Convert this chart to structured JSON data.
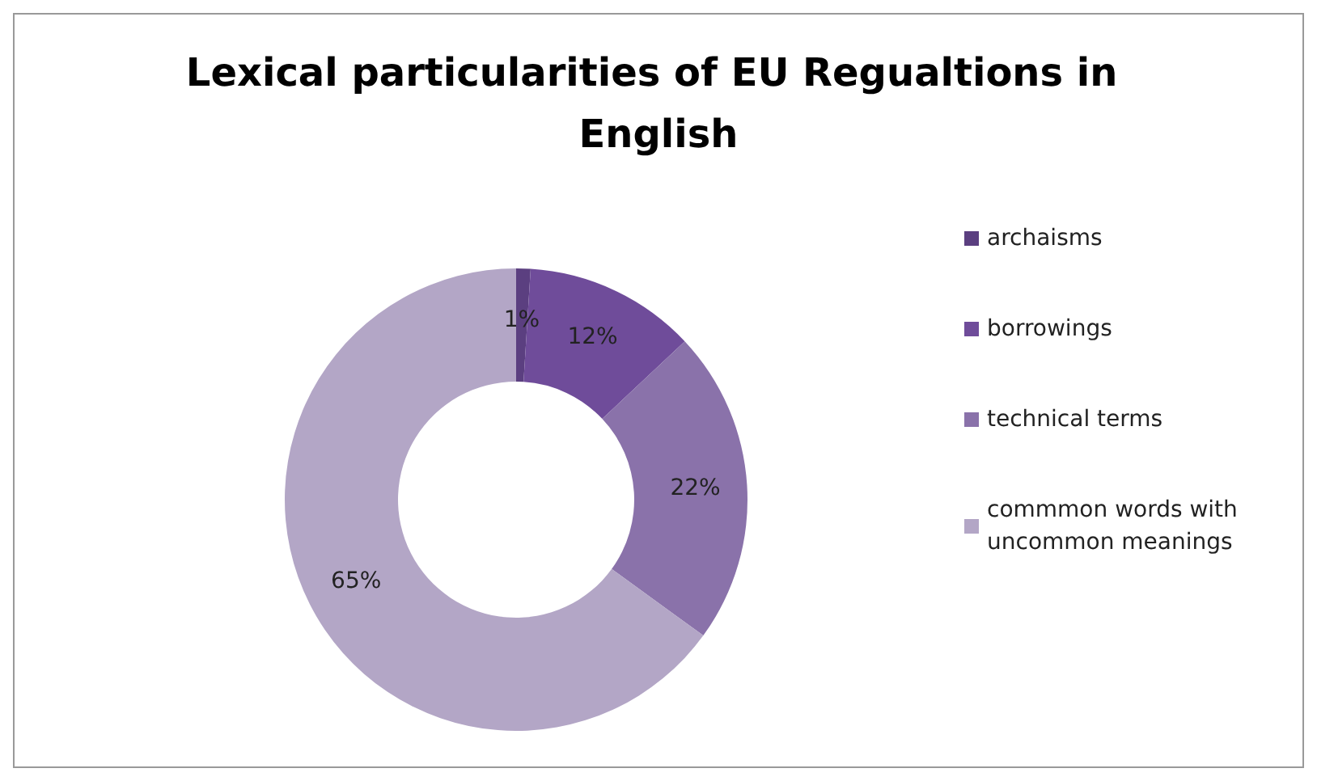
{
  "chart_data": {
    "type": "donut",
    "title": "Lexical particularities of EU Regualtions in English",
    "categories": [
      "archaisms",
      "borrowings",
      "technical terms",
      "commmon words with uncommon meanings"
    ],
    "values": [
      1,
      12,
      22,
      65
    ],
    "value_labels": [
      "1%",
      "12%",
      "22%",
      "65%"
    ],
    "colors": [
      "#5b3f80",
      "#6f4c9a",
      "#8a72aa",
      "#b3a6c6"
    ],
    "legend": "right"
  }
}
